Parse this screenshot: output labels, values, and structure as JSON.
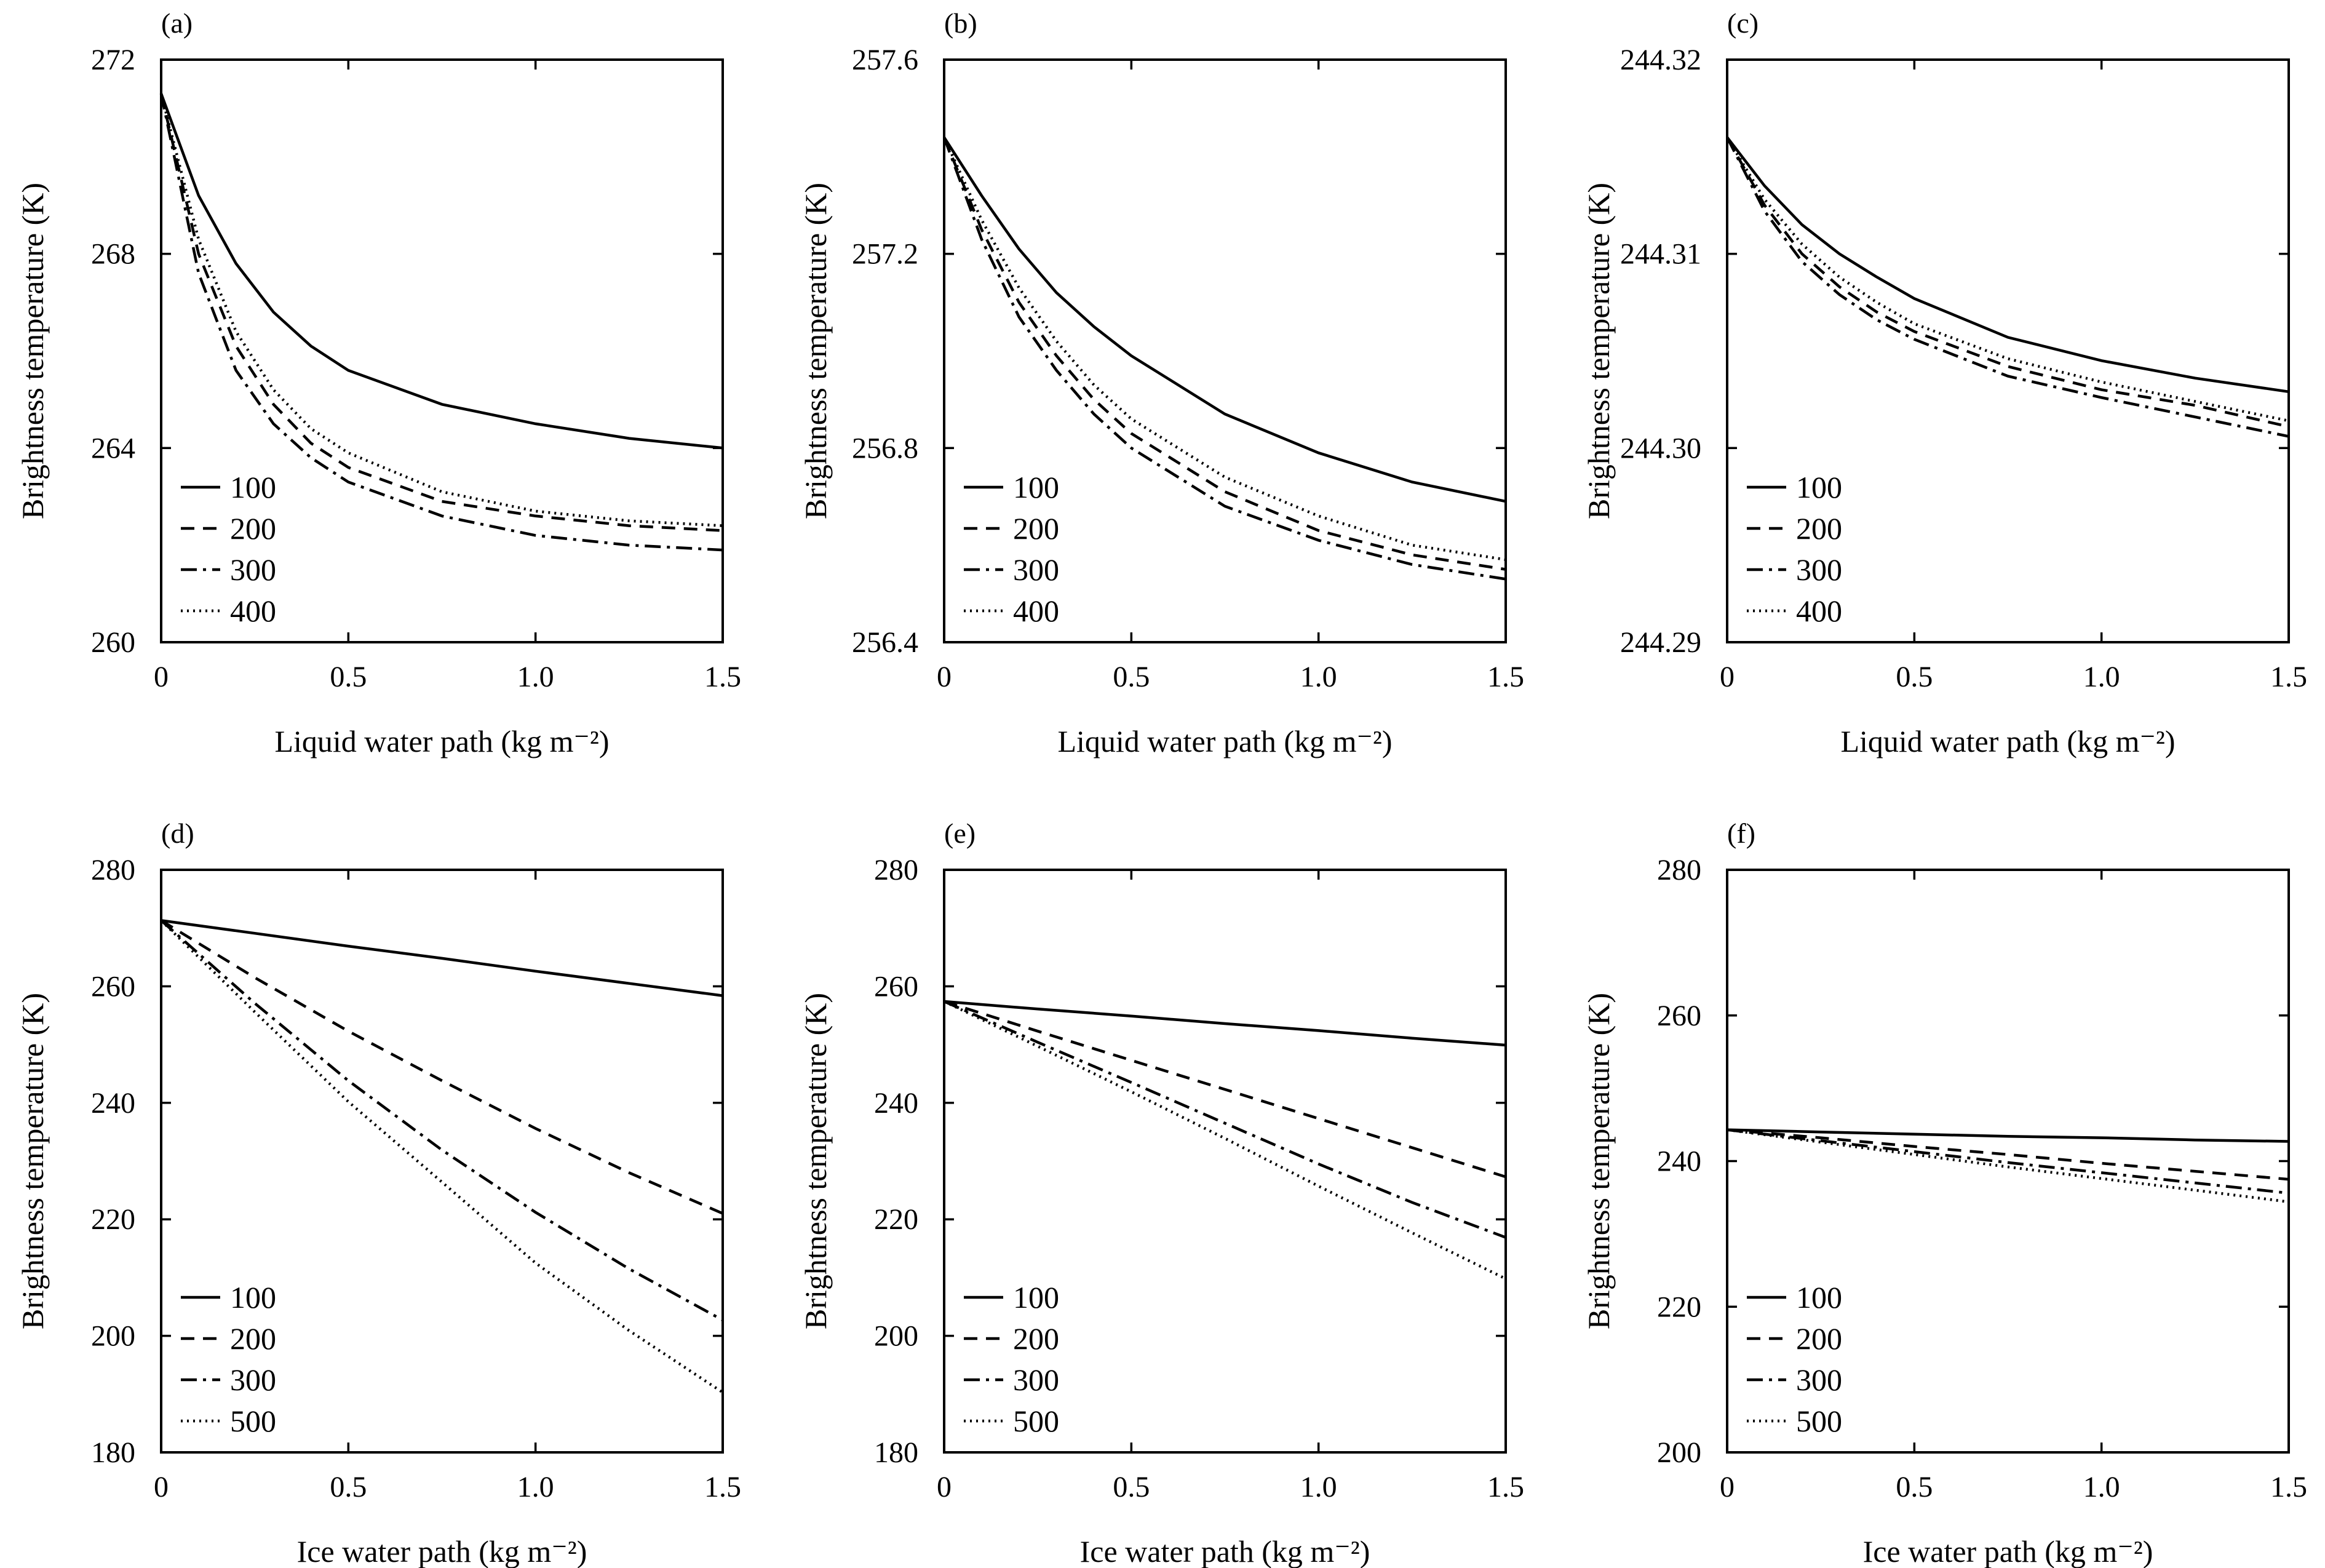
{
  "chart_data": [
    {
      "type": "line",
      "panel_label": "(a)",
      "xlabel": "Liquid water path (kg m⁻²)",
      "ylabel": "Brightness temperature (K)",
      "xlim": [
        0,
        1.5
      ],
      "ylim": [
        260,
        272
      ],
      "xticks": [
        0,
        0.5,
        1.0,
        1.5
      ],
      "xtick_labels": [
        "0",
        "0.5",
        "1.0",
        "1.5"
      ],
      "yticks": [
        260,
        264,
        268,
        272
      ],
      "ytick_labels": [
        "260",
        "264",
        "268",
        "272"
      ],
      "legend_position": "bottom-left",
      "series": [
        {
          "name": "100",
          "dash": "solid",
          "x": [
            0,
            0.1,
            0.2,
            0.3,
            0.4,
            0.5,
            0.75,
            1.0,
            1.25,
            1.5
          ],
          "y": [
            271.3,
            269.2,
            267.8,
            266.8,
            266.1,
            265.6,
            264.9,
            264.5,
            264.2,
            264.0
          ]
        },
        {
          "name": "200",
          "dash": "dashed",
          "x": [
            0,
            0.1,
            0.2,
            0.3,
            0.4,
            0.5,
            0.75,
            1.0,
            1.25,
            1.5
          ],
          "y": [
            271.3,
            268.0,
            266.1,
            264.9,
            264.1,
            263.6,
            262.9,
            262.6,
            262.4,
            262.3
          ]
        },
        {
          "name": "300",
          "dash": "dashdot",
          "x": [
            0,
            0.1,
            0.2,
            0.3,
            0.4,
            0.5,
            0.75,
            1.0,
            1.25,
            1.5
          ],
          "y": [
            271.3,
            267.6,
            265.6,
            264.5,
            263.8,
            263.3,
            262.6,
            262.2,
            262.0,
            261.9
          ]
        },
        {
          "name": "400",
          "dash": "dotted",
          "x": [
            0,
            0.1,
            0.2,
            0.3,
            0.4,
            0.5,
            0.75,
            1.0,
            1.25,
            1.5
          ],
          "y": [
            271.3,
            268.3,
            266.4,
            265.2,
            264.4,
            263.9,
            263.1,
            262.7,
            262.5,
            262.4
          ]
        }
      ]
    },
    {
      "type": "line",
      "panel_label": "(b)",
      "xlabel": "Liquid water path (kg m⁻²)",
      "ylabel": "Brightness temperature (K)",
      "xlim": [
        0,
        1.5
      ],
      "ylim": [
        256.4,
        257.6
      ],
      "xticks": [
        0,
        0.5,
        1.0,
        1.5
      ],
      "xtick_labels": [
        "0",
        "0.5",
        "1.0",
        "1.5"
      ],
      "yticks": [
        256.4,
        256.8,
        257.2,
        257.6
      ],
      "ytick_labels": [
        "256.4",
        "256.8",
        "257.2",
        "257.6"
      ],
      "legend_position": "bottom-left",
      "series": [
        {
          "name": "100",
          "dash": "solid",
          "x": [
            0,
            0.1,
            0.2,
            0.3,
            0.4,
            0.5,
            0.75,
            1.0,
            1.25,
            1.5
          ],
          "y": [
            257.44,
            257.32,
            257.21,
            257.12,
            257.05,
            256.99,
            256.87,
            256.79,
            256.73,
            256.69
          ]
        },
        {
          "name": "200",
          "dash": "dashed",
          "x": [
            0,
            0.1,
            0.2,
            0.3,
            0.4,
            0.5,
            0.75,
            1.0,
            1.25,
            1.5
          ],
          "y": [
            257.44,
            257.25,
            257.1,
            256.99,
            256.9,
            256.83,
            256.71,
            256.63,
            256.58,
            256.55
          ]
        },
        {
          "name": "300",
          "dash": "dashdot",
          "x": [
            0,
            0.1,
            0.2,
            0.3,
            0.4,
            0.5,
            0.75,
            1.0,
            1.25,
            1.5
          ],
          "y": [
            257.44,
            257.23,
            257.07,
            256.96,
            256.87,
            256.8,
            256.68,
            256.61,
            256.56,
            256.53
          ]
        },
        {
          "name": "400",
          "dash": "dotted",
          "x": [
            0,
            0.1,
            0.2,
            0.3,
            0.4,
            0.5,
            0.75,
            1.0,
            1.25,
            1.5
          ],
          "y": [
            257.44,
            257.27,
            257.13,
            257.02,
            256.93,
            256.86,
            256.74,
            256.66,
            256.6,
            256.57
          ]
        }
      ]
    },
    {
      "type": "line",
      "panel_label": "(c)",
      "xlabel": "Liquid water path (kg m⁻²)",
      "ylabel": "Brightness temperature (K)",
      "xlim": [
        0,
        1.5
      ],
      "ylim": [
        244.29,
        244.32
      ],
      "xticks": [
        0,
        0.5,
        1.0,
        1.5
      ],
      "xtick_labels": [
        "0",
        "0.5",
        "1.0",
        "1.5"
      ],
      "yticks": [
        244.29,
        244.3,
        244.31,
        244.32
      ],
      "ytick_labels": [
        "244.29",
        "244.30",
        "244.31",
        "244.32"
      ],
      "legend_position": "bottom-left",
      "series": [
        {
          "name": "100",
          "dash": "solid",
          "x": [
            0,
            0.1,
            0.2,
            0.3,
            0.4,
            0.5,
            0.75,
            1.0,
            1.25,
            1.5
          ],
          "y": [
            244.316,
            244.3135,
            244.3115,
            244.31,
            244.3088,
            244.3077,
            244.3057,
            244.3045,
            244.3036,
            244.3029
          ]
        },
        {
          "name": "200",
          "dash": "dashed",
          "x": [
            0,
            0.1,
            0.2,
            0.3,
            0.4,
            0.5,
            0.75,
            1.0,
            1.25,
            1.5
          ],
          "y": [
            244.316,
            244.3125,
            244.31,
            244.3083,
            244.307,
            244.306,
            244.3042,
            244.303,
            244.3022,
            244.3011
          ]
        },
        {
          "name": "300",
          "dash": "dashdot",
          "x": [
            0,
            0.1,
            0.2,
            0.3,
            0.4,
            0.5,
            0.75,
            1.0,
            1.25,
            1.5
          ],
          "y": [
            244.316,
            244.3122,
            244.3096,
            244.3079,
            244.3066,
            244.3056,
            244.3037,
            244.3026,
            244.3016,
            244.3006
          ]
        },
        {
          "name": "400",
          "dash": "dotted",
          "x": [
            0,
            0.1,
            0.2,
            0.3,
            0.4,
            0.5,
            0.75,
            1.0,
            1.25,
            1.5
          ],
          "y": [
            244.316,
            244.3128,
            244.3105,
            244.3088,
            244.3075,
            244.3064,
            244.3046,
            244.3034,
            244.3024,
            244.3014
          ]
        }
      ]
    },
    {
      "type": "line",
      "panel_label": "(d)",
      "xlabel": "Ice water path (kg m⁻²)",
      "ylabel": "Brightness temperature (K)",
      "xlim": [
        0,
        1.5
      ],
      "ylim": [
        180,
        280
      ],
      "xticks": [
        0,
        0.5,
        1.0,
        1.5
      ],
      "xtick_labels": [
        "0",
        "0.5",
        "1.0",
        "1.5"
      ],
      "yticks": [
        180,
        200,
        220,
        240,
        260,
        280
      ],
      "ytick_labels": [
        "180",
        "200",
        "220",
        "240",
        "260",
        "280"
      ],
      "legend_position": "bottom-left",
      "series": [
        {
          "name": "100",
          "dash": "solid",
          "x": [
            0,
            0.25,
            0.5,
            0.75,
            1.0,
            1.25,
            1.5
          ],
          "y": [
            271.3,
            269.1,
            266.9,
            264.8,
            262.6,
            260.5,
            258.4
          ]
        },
        {
          "name": "200",
          "dash": "dashed",
          "x": [
            0,
            0.25,
            0.5,
            0.75,
            1.0,
            1.25,
            1.5
          ],
          "y": [
            271.3,
            261.5,
            252.3,
            243.8,
            235.6,
            228.0,
            221.0
          ]
        },
        {
          "name": "300",
          "dash": "dashdot",
          "x": [
            0,
            0.25,
            0.5,
            0.75,
            1.0,
            1.25,
            1.5
          ],
          "y": [
            271.3,
            257.1,
            243.8,
            231.9,
            221.2,
            211.5,
            202.7
          ]
        },
        {
          "name": "500",
          "dash": "dotted",
          "x": [
            0,
            0.25,
            0.5,
            0.75,
            1.0,
            1.25,
            1.5
          ],
          "y": [
            271.3,
            255.6,
            240.2,
            226.4,
            212.5,
            200.9,
            190.3
          ]
        }
      ]
    },
    {
      "type": "line",
      "panel_label": "(e)",
      "xlabel": "Ice water path (kg m⁻²)",
      "ylabel": "Brightness temperature (K)",
      "xlim": [
        0,
        1.5
      ],
      "ylim": [
        180,
        280
      ],
      "xticks": [
        0,
        0.5,
        1.0,
        1.5
      ],
      "xtick_labels": [
        "0",
        "0.5",
        "1.0",
        "1.5"
      ],
      "yticks": [
        180,
        200,
        220,
        240,
        260,
        280
      ],
      "ytick_labels": [
        "180",
        "200",
        "220",
        "240",
        "260",
        "280"
      ],
      "legend_position": "bottom-left",
      "series": [
        {
          "name": "100",
          "dash": "solid",
          "x": [
            0,
            0.25,
            0.5,
            0.75,
            1.0,
            1.25,
            1.5
          ],
          "y": [
            257.4,
            256.1,
            254.9,
            253.6,
            252.4,
            251.1,
            249.9
          ]
        },
        {
          "name": "200",
          "dash": "dashed",
          "x": [
            0,
            0.25,
            0.5,
            0.75,
            1.0,
            1.25,
            1.5
          ],
          "y": [
            257.4,
            252.3,
            247.3,
            242.3,
            237.3,
            232.3,
            227.3
          ]
        },
        {
          "name": "300",
          "dash": "dashdot",
          "x": [
            0,
            0.25,
            0.5,
            0.75,
            1.0,
            1.25,
            1.5
          ],
          "y": [
            257.4,
            250.4,
            243.5,
            236.5,
            229.5,
            222.9,
            216.9
          ]
        },
        {
          "name": "500",
          "dash": "dotted",
          "x": [
            0,
            0.25,
            0.5,
            0.75,
            1.0,
            1.25,
            1.5
          ],
          "y": [
            257.4,
            249.7,
            241.9,
            233.9,
            225.7,
            217.7,
            209.8
          ]
        }
      ]
    },
    {
      "type": "line",
      "panel_label": "(f)",
      "xlabel": "Ice water path (kg m⁻²)",
      "ylabel": "Brightness temperature (K)",
      "xlim": [
        0,
        1.5
      ],
      "ylim": [
        200,
        280
      ],
      "xticks": [
        0,
        0.5,
        1.0,
        1.5
      ],
      "xtick_labels": [
        "0",
        "0.5",
        "1.0",
        "1.5"
      ],
      "yticks": [
        200,
        220,
        240,
        260,
        280
      ],
      "ytick_labels": [
        "200",
        "220",
        "240",
        "260",
        "280"
      ],
      "legend_position": "bottom-left",
      "series": [
        {
          "name": "100",
          "dash": "solid",
          "x": [
            0,
            0.25,
            0.5,
            0.75,
            1.0,
            1.25,
            1.5
          ],
          "y": [
            244.3,
            244.0,
            243.7,
            243.4,
            243.2,
            242.9,
            242.7
          ]
        },
        {
          "name": "200",
          "dash": "dashed",
          "x": [
            0,
            0.25,
            0.5,
            0.75,
            1.0,
            1.25,
            1.5
          ],
          "y": [
            244.3,
            243.2,
            242.0,
            240.9,
            239.7,
            238.6,
            237.5
          ]
        },
        {
          "name": "300",
          "dash": "dashdot",
          "x": [
            0,
            0.25,
            0.5,
            0.75,
            1.0,
            1.25,
            1.5
          ],
          "y": [
            244.3,
            242.8,
            241.3,
            239.8,
            238.4,
            237.0,
            235.6
          ]
        },
        {
          "name": "500",
          "dash": "dotted",
          "x": [
            0,
            0.25,
            0.5,
            0.75,
            1.0,
            1.25,
            1.5
          ],
          "y": [
            244.3,
            242.6,
            240.9,
            239.2,
            237.6,
            236.0,
            234.4
          ]
        }
      ]
    }
  ]
}
